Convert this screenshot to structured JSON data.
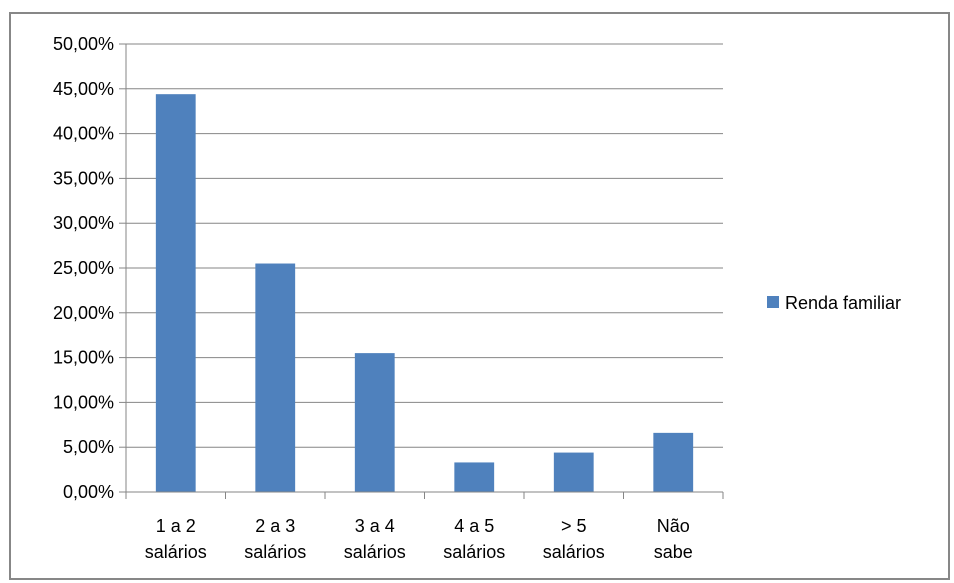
{
  "chart_data": {
    "type": "bar",
    "categories": [
      [
        "1 a 2",
        "salários"
      ],
      [
        "2 a 3",
        "salários"
      ],
      [
        "3 a 4",
        "salários"
      ],
      [
        "4 a 5",
        "salários"
      ],
      [
        "> 5",
        "salários"
      ],
      [
        "Não",
        "sabe"
      ]
    ],
    "series": [
      {
        "name": "Renda familiar",
        "values": [
          44.4,
          25.5,
          15.5,
          3.3,
          4.4,
          6.6
        ],
        "color": "#4f81bd"
      }
    ],
    "y_ticks": [
      "0,00%",
      "5,00%",
      "10,00%",
      "15,00%",
      "20,00%",
      "25,00%",
      "30,00%",
      "35,00%",
      "40,00%",
      "45,00%",
      "50,00%"
    ],
    "ylim": [
      0,
      50
    ],
    "y_unit": "%",
    "grid": true,
    "legend": {
      "position": "right",
      "label": "Renda familiar"
    },
    "title": "",
    "xlabel": "",
    "ylabel": ""
  }
}
